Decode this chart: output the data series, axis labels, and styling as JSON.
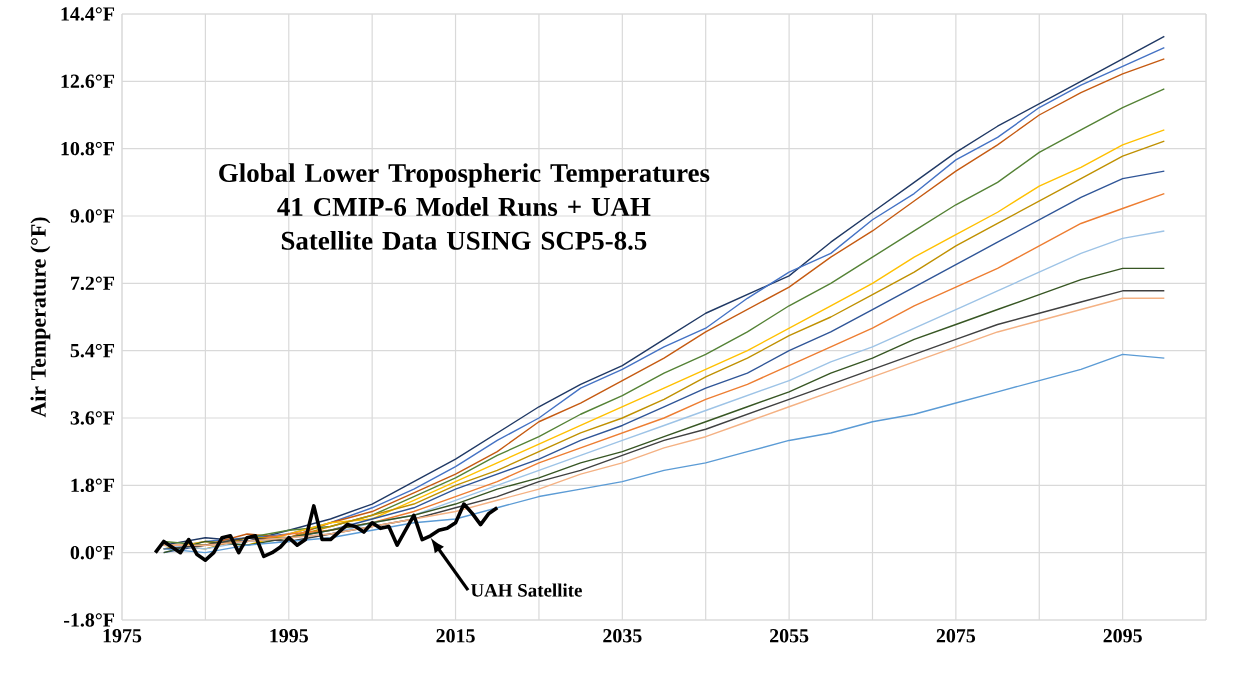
{
  "chart_data": {
    "type": "line",
    "title": "Global Lower Tropospheric Temperatures",
    "subtitle": "41 CMIP-6 Model Runs + UAH Satellite Data USING SCP5-8.5",
    "ylabel": "Air Temperature (°F)",
    "annotations": [
      {
        "text": "UAH Satellite",
        "x": 2012,
        "y": 0.4
      }
    ],
    "x": [
      1980,
      1985,
      1990,
      1995,
      2000,
      2005,
      2010,
      2015,
      2020,
      2025,
      2030,
      2035,
      2040,
      2045,
      2050,
      2055,
      2060,
      2065,
      2070,
      2075,
      2080,
      2085,
      2090,
      2095,
      2100
    ],
    "series": [
      {
        "color": "#1f3864",
        "values": [
          0.2,
          0.4,
          0.3,
          0.6,
          0.9,
          1.3,
          1.9,
          2.5,
          3.2,
          3.9,
          4.5,
          5.0,
          5.7,
          6.4,
          6.9,
          7.4,
          8.3,
          9.1,
          9.9,
          10.7,
          11.4,
          12.0,
          12.6,
          13.2,
          13.8
        ]
      },
      {
        "color": "#4472c4",
        "values": [
          0.1,
          0.3,
          0.4,
          0.5,
          0.8,
          1.2,
          1.7,
          2.3,
          3.0,
          3.6,
          4.4,
          4.9,
          5.5,
          6.0,
          6.8,
          7.5,
          8.0,
          8.9,
          9.6,
          10.5,
          11.1,
          11.9,
          12.5,
          13.0,
          13.5
        ]
      },
      {
        "color": "#c55a11",
        "values": [
          0.2,
          0.2,
          0.5,
          0.4,
          0.8,
          1.1,
          1.6,
          2.1,
          2.7,
          3.5,
          4.0,
          4.6,
          5.2,
          5.9,
          6.5,
          7.1,
          7.9,
          8.6,
          9.4,
          10.2,
          10.9,
          11.7,
          12.3,
          12.8,
          13.2
        ]
      },
      {
        "color": "#548235",
        "values": [
          0.3,
          0.2,
          0.4,
          0.6,
          0.7,
          1.0,
          1.5,
          2.0,
          2.6,
          3.1,
          3.7,
          4.2,
          4.8,
          5.3,
          5.9,
          6.6,
          7.2,
          7.9,
          8.6,
          9.3,
          9.9,
          10.7,
          11.3,
          11.9,
          12.4
        ]
      },
      {
        "color": "#ffc000",
        "values": [
          0.1,
          0.3,
          0.2,
          0.5,
          0.8,
          0.9,
          1.4,
          1.9,
          2.4,
          2.9,
          3.4,
          3.9,
          4.4,
          4.9,
          5.4,
          6.0,
          6.6,
          7.2,
          7.9,
          8.5,
          9.1,
          9.8,
          10.3,
          10.9,
          11.3
        ]
      },
      {
        "color": "#bf9000",
        "values": [
          0.2,
          0.1,
          0.4,
          0.4,
          0.7,
          1.0,
          1.3,
          1.8,
          2.2,
          2.7,
          3.2,
          3.6,
          4.1,
          4.7,
          5.2,
          5.8,
          6.3,
          6.9,
          7.5,
          8.2,
          8.8,
          9.4,
          10.0,
          10.6,
          11.0
        ]
      },
      {
        "color": "#2f5597",
        "values": [
          0.0,
          0.2,
          0.3,
          0.4,
          0.6,
          0.9,
          1.2,
          1.7,
          2.1,
          2.5,
          3.0,
          3.4,
          3.9,
          4.4,
          4.8,
          5.4,
          5.9,
          6.5,
          7.1,
          7.7,
          8.3,
          8.9,
          9.5,
          10.0,
          10.2
        ]
      },
      {
        "color": "#ed7d31",
        "values": [
          0.1,
          0.2,
          0.3,
          0.5,
          0.6,
          0.8,
          1.1,
          1.5,
          1.9,
          2.4,
          2.8,
          3.2,
          3.6,
          4.1,
          4.5,
          5.0,
          5.5,
          6.0,
          6.6,
          7.1,
          7.6,
          8.2,
          8.8,
          9.2,
          9.6
        ]
      },
      {
        "color": "#9dc3e6",
        "values": [
          0.2,
          0.1,
          0.3,
          0.4,
          0.5,
          0.8,
          1.0,
          1.4,
          1.8,
          2.2,
          2.6,
          3.0,
          3.4,
          3.8,
          4.2,
          4.6,
          5.1,
          5.5,
          6.0,
          6.5,
          7.0,
          7.5,
          8.0,
          8.4,
          8.6
        ]
      },
      {
        "color": "#375623",
        "values": [
          0.0,
          0.3,
          0.2,
          0.4,
          0.6,
          0.8,
          1.0,
          1.3,
          1.7,
          2.0,
          2.4,
          2.7,
          3.1,
          3.5,
          3.9,
          4.3,
          4.8,
          5.2,
          5.7,
          6.1,
          6.5,
          6.9,
          7.3,
          7.6,
          7.6
        ]
      },
      {
        "color": "#404040",
        "values": [
          0.1,
          0.2,
          0.4,
          0.3,
          0.5,
          0.7,
          0.9,
          1.2,
          1.5,
          1.9,
          2.2,
          2.6,
          3.0,
          3.3,
          3.7,
          4.1,
          4.5,
          4.9,
          5.3,
          5.7,
          6.1,
          6.4,
          6.7,
          7.0,
          7.0
        ]
      },
      {
        "color": "#f4b183",
        "values": [
          0.2,
          0.2,
          0.3,
          0.4,
          0.5,
          0.7,
          0.9,
          1.1,
          1.4,
          1.7,
          2.1,
          2.4,
          2.8,
          3.1,
          3.5,
          3.9,
          4.3,
          4.7,
          5.1,
          5.5,
          5.9,
          6.2,
          6.5,
          6.8,
          6.8
        ]
      },
      {
        "color": "#5b9bd5",
        "values": [
          0.1,
          0.0,
          0.2,
          0.3,
          0.4,
          0.6,
          0.8,
          0.9,
          1.2,
          1.5,
          1.7,
          1.9,
          2.2,
          2.4,
          2.7,
          3.0,
          3.2,
          3.5,
          3.7,
          4.0,
          4.3,
          4.6,
          4.9,
          5.3,
          5.2
        ]
      },
      {
        "color": "#000000",
        "x": [
          1979,
          1980,
          1981,
          1982,
          1983,
          1984,
          1985,
          1986,
          1987,
          1988,
          1989,
          1990,
          1991,
          1992,
          1993,
          1994,
          1995,
          1996,
          1997,
          1998,
          1999,
          2000,
          2001,
          2002,
          2003,
          2004,
          2005,
          2006,
          2007,
          2008,
          2009,
          2010,
          2011,
          2012,
          2013,
          2014,
          2015,
          2016,
          2017,
          2018,
          2019,
          2020
        ],
        "values": [
          0.0,
          0.3,
          0.15,
          0.0,
          0.35,
          -0.05,
          -0.2,
          0.0,
          0.4,
          0.45,
          0.0,
          0.4,
          0.45,
          -0.1,
          0.0,
          0.15,
          0.4,
          0.2,
          0.35,
          1.25,
          0.35,
          0.35,
          0.55,
          0.75,
          0.7,
          0.55,
          0.8,
          0.65,
          0.7,
          0.2,
          0.6,
          1.0,
          0.35,
          0.45,
          0.6,
          0.65,
          0.8,
          1.3,
          1.05,
          0.75,
          1.05,
          1.2
        ]
      }
    ],
    "xlim": [
      1975,
      2105
    ],
    "xticks": [
      1975,
      {
        "value": 1985,
        "label": null
      },
      1995,
      {
        "value": 2005,
        "label": null
      },
      2015,
      {
        "value": 2025,
        "label": null
      },
      2035,
      {
        "value": 2045,
        "label": null
      },
      2055,
      {
        "value": 2065,
        "label": null
      },
      2075,
      {
        "value": 2085,
        "label": null
      },
      2095,
      {
        "value": 2105,
        "label": null
      }
    ],
    "ylim": [
      -1.8,
      14.4
    ],
    "yticks": [
      {
        "value": -1.8,
        "label": "-1.8°F"
      },
      {
        "value": 0,
        "label": "0.0°F"
      },
      {
        "value": 1.8,
        "label": "1.8°F"
      },
      {
        "value": 3.6,
        "label": "3.6°F"
      },
      {
        "value": 5.4,
        "label": "5.4°F"
      },
      {
        "value": 7.2,
        "label": "7.2°F"
      },
      {
        "value": 9.0,
        "label": "9.0°F"
      },
      {
        "value": 10.8,
        "label": "10.8°F"
      },
      {
        "value": 12.6,
        "label": "12.6°F"
      },
      {
        "value": 14.4,
        "label": "14.4°F"
      }
    ],
    "grid": true,
    "marker": "none"
  }
}
